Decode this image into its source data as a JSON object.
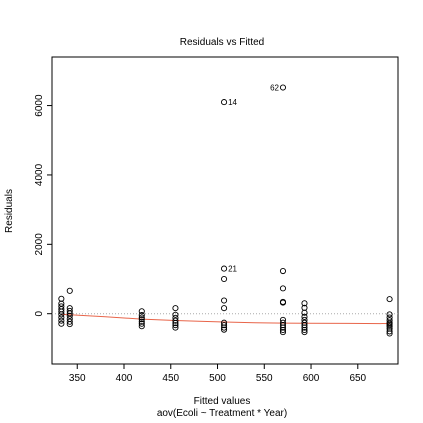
{
  "chart_data": {
    "type": "scatter",
    "title": "Residuals vs Fitted",
    "xlabel": "Fitted values",
    "xlabel2": "aov(Ecoli ~ Treatment * Year)",
    "ylabel": "Residuals",
    "xlim": [
      323,
      693
    ],
    "ylim": [
      -1450,
      7400
    ],
    "xticks": [
      350,
      400,
      450,
      500,
      550,
      600,
      650
    ],
    "yticks": [
      0,
      2000,
      4000,
      6000
    ],
    "points": [
      {
        "x": 333,
        "y": 430
      },
      {
        "x": 333,
        "y": 290
      },
      {
        "x": 333,
        "y": 210
      },
      {
        "x": 333,
        "y": 130
      },
      {
        "x": 333,
        "y": 60
      },
      {
        "x": 333,
        "y": -20
      },
      {
        "x": 333,
        "y": -110
      },
      {
        "x": 333,
        "y": -200
      },
      {
        "x": 333,
        "y": -290
      },
      {
        "x": 342,
        "y": 660
      },
      {
        "x": 342,
        "y": 160
      },
      {
        "x": 342,
        "y": 80
      },
      {
        "x": 342,
        "y": 10
      },
      {
        "x": 342,
        "y": -60
      },
      {
        "x": 342,
        "y": -150
      },
      {
        "x": 342,
        "y": -230
      },
      {
        "x": 342,
        "y": -300
      },
      {
        "x": 419,
        "y": 70
      },
      {
        "x": 419,
        "y": -40
      },
      {
        "x": 419,
        "y": -110
      },
      {
        "x": 419,
        "y": -160
      },
      {
        "x": 419,
        "y": -230
      },
      {
        "x": 419,
        "y": -290
      },
      {
        "x": 419,
        "y": -360
      },
      {
        "x": 455,
        "y": 160
      },
      {
        "x": 455,
        "y": -30
      },
      {
        "x": 455,
        "y": -120
      },
      {
        "x": 455,
        "y": -200
      },
      {
        "x": 455,
        "y": -270
      },
      {
        "x": 455,
        "y": -330
      },
      {
        "x": 455,
        "y": -400
      },
      {
        "x": 507,
        "y": 6100,
        "label": "14"
      },
      {
        "x": 507,
        "y": 1300,
        "label": "21"
      },
      {
        "x": 507,
        "y": 1000
      },
      {
        "x": 507,
        "y": 380
      },
      {
        "x": 507,
        "y": 160
      },
      {
        "x": 507,
        "y": -260
      },
      {
        "x": 507,
        "y": -330
      },
      {
        "x": 507,
        "y": -400
      },
      {
        "x": 507,
        "y": -460
      },
      {
        "x": 570,
        "y": 6520,
        "label": "62"
      },
      {
        "x": 570,
        "y": 1230
      },
      {
        "x": 570,
        "y": 730
      },
      {
        "x": 570,
        "y": 340
      },
      {
        "x": 570,
        "y": 320
      },
      {
        "x": 570,
        "y": -180
      },
      {
        "x": 570,
        "y": -260
      },
      {
        "x": 570,
        "y": -330
      },
      {
        "x": 570,
        "y": -400
      },
      {
        "x": 570,
        "y": -470
      },
      {
        "x": 570,
        "y": -530
      },
      {
        "x": 593,
        "y": 300
      },
      {
        "x": 593,
        "y": 170
      },
      {
        "x": 593,
        "y": 30
      },
      {
        "x": 593,
        "y": -90
      },
      {
        "x": 593,
        "y": -180
      },
      {
        "x": 593,
        "y": -260
      },
      {
        "x": 593,
        "y": -330
      },
      {
        "x": 593,
        "y": -400
      },
      {
        "x": 593,
        "y": -470
      },
      {
        "x": 593,
        "y": -530
      },
      {
        "x": 684,
        "y": 420
      },
      {
        "x": 684,
        "y": -20
      },
      {
        "x": 684,
        "y": -110
      },
      {
        "x": 684,
        "y": -190
      },
      {
        "x": 684,
        "y": -260
      },
      {
        "x": 684,
        "y": -290
      },
      {
        "x": 684,
        "y": -330
      },
      {
        "x": 684,
        "y": -370
      },
      {
        "x": 684,
        "y": -430
      },
      {
        "x": 684,
        "y": -510
      },
      {
        "x": 684,
        "y": -570
      }
    ],
    "smooth_line": {
      "color": "#e8654a",
      "x": [
        333,
        342,
        380,
        419,
        455,
        480,
        507,
        540,
        570,
        593,
        640,
        684
      ],
      "y": [
        -20,
        -30,
        -90,
        -155,
        -195,
        -215,
        -240,
        -260,
        -270,
        -275,
        -280,
        -285
      ]
    },
    "reference_line": {
      "y": 0,
      "style": "dotted",
      "color": "#aaaaaa"
    },
    "grid": false
  }
}
